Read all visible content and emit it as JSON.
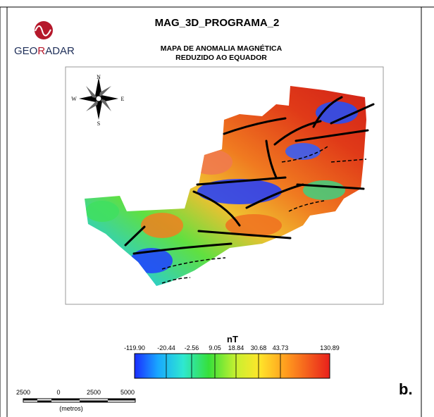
{
  "header": {
    "title": "MAG_3D_PROGRAMA_2",
    "logo": {
      "part1": "GEO",
      "part2": "R",
      "part3": "ADAR"
    }
  },
  "map": {
    "title_line1": "MAPA DE ANOMALIA MAGNÉTICA",
    "title_line2": "REDUZIDO AO EQUADOR",
    "compass": {
      "north": "N",
      "south": "S",
      "east": "E",
      "west": "W"
    }
  },
  "legend": {
    "unit": "nT",
    "labels": [
      "-119.90",
      "-20.44",
      "-2.56",
      "9.05",
      "18.84",
      "30.68",
      "43.73",
      "130.89"
    ]
  },
  "scale_bar": {
    "labels": [
      "2500",
      "0",
      "2500",
      "5000"
    ],
    "unit": "(metros)"
  },
  "panel_label": "b."
}
